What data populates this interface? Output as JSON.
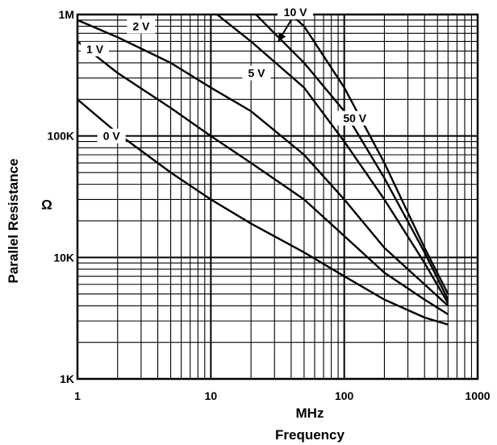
{
  "chart_data": {
    "type": "line",
    "title": "",
    "xscale": "log",
    "yscale": "log",
    "xlim": [
      1,
      1000
    ],
    "ylim": [
      1000,
      1000000
    ],
    "grid": true,
    "xlabel_unit": "MHz",
    "xlabel": "Frequency",
    "ylabel": "Parallel Resistance",
    "ylabel_unit": "Ω",
    "x_ticks": [
      {
        "value": 1,
        "label": "1"
      },
      {
        "value": 10,
        "label": "10"
      },
      {
        "value": 100,
        "label": "100"
      },
      {
        "value": 1000,
        "label": "1000"
      }
    ],
    "y_ticks": [
      {
        "value": 1000,
        "label": "1K"
      },
      {
        "value": 10000,
        "label": "10K"
      },
      {
        "value": 100000,
        "label": "100K"
      },
      {
        "value": 1000000,
        "label": "1M"
      }
    ],
    "series": [
      {
        "name": "0 V",
        "x": [
          1,
          2,
          5,
          10,
          20,
          50,
          100,
          200,
          400,
          600
        ],
        "y": [
          200000,
          105000,
          50000,
          30000,
          19000,
          11000,
          7000,
          4500,
          3200,
          2800
        ]
      },
      {
        "name": "1 V",
        "x": [
          1,
          2,
          5,
          10,
          20,
          50,
          100,
          200,
          400,
          600
        ],
        "y": [
          600000,
          330000,
          170000,
          100000,
          60000,
          30000,
          15000,
          7500,
          4500,
          3400
        ]
      },
      {
        "name": "2 V",
        "x": [
          1,
          2,
          5,
          10,
          20,
          50,
          100,
          200,
          400,
          600
        ],
        "y": [
          900000,
          650000,
          400000,
          250000,
          160000,
          70000,
          30000,
          12000,
          6000,
          4000
        ]
      },
      {
        "name": "5 V",
        "x": [
          10,
          20,
          50,
          100,
          200,
          400,
          600
        ],
        "y": [
          1100000,
          600000,
          250000,
          90000,
          30000,
          9000,
          4200
        ]
      },
      {
        "name": "10 V",
        "x": [
          20,
          30,
          50,
          100,
          200,
          400,
          600
        ],
        "y": [
          1100000,
          700000,
          400000,
          160000,
          45000,
          11000,
          4500
        ]
      },
      {
        "name": "50 V",
        "x": [
          40,
          50,
          100,
          200,
          400,
          600
        ],
        "y": [
          1000000,
          800000,
          250000,
          60000,
          12000,
          5000
        ]
      }
    ]
  }
}
